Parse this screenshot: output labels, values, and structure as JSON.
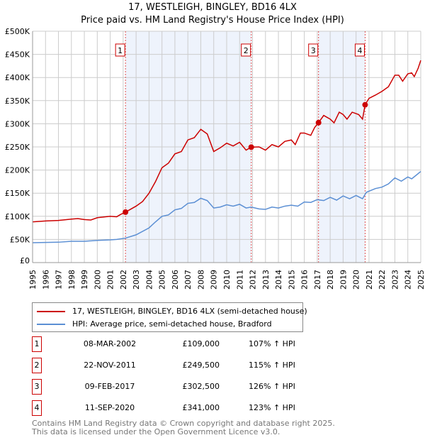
{
  "title": "17, WESTLEIGH, BINGLEY, BD16 4LX",
  "subtitle": "Price paid vs. HM Land Registry's House Price Index (HPI)",
  "colors": {
    "property": "#cc0000",
    "hpi": "#5b8fd4",
    "shade": "#eef3fc",
    "grid": "#cccccc"
  },
  "chart_data": {
    "type": "line",
    "title": "Price paid vs. HM Land Registry's House Price Index (HPI)",
    "xlim": [
      1995,
      2025
    ],
    "ylim": [
      0,
      500000
    ],
    "yticks": [
      {
        "v": 0,
        "label": "£0"
      },
      {
        "v": 50000,
        "label": "£50K"
      },
      {
        "v": 100000,
        "label": "£100K"
      },
      {
        "v": 150000,
        "label": "£150K"
      },
      {
        "v": 200000,
        "label": "£200K"
      },
      {
        "v": 250000,
        "label": "£250K"
      },
      {
        "v": 300000,
        "label": "£300K"
      },
      {
        "v": 350000,
        "label": "£350K"
      },
      {
        "v": 400000,
        "label": "£400K"
      },
      {
        "v": 450000,
        "label": "£450K"
      },
      {
        "v": 500000,
        "label": "£500K"
      }
    ],
    "xticks": [
      "1995",
      "1996",
      "1997",
      "1998",
      "1999",
      "2000",
      "2001",
      "2002",
      "2003",
      "2004",
      "2005",
      "2006",
      "2007",
      "2008",
      "2009",
      "2010",
      "2011",
      "2012",
      "2013",
      "2014",
      "2015",
      "2016",
      "2017",
      "2018",
      "2019",
      "2020",
      "2021",
      "2022",
      "2023",
      "2024",
      "2025"
    ],
    "shaded": [
      [
        2002.18,
        2011.9
      ],
      [
        2017.1,
        2020.7
      ]
    ],
    "series": [
      {
        "name": "17, WESTLEIGH, BINGLEY, BD16 4LX (semi-detached house)",
        "color": "#cc0000",
        "points": [
          [
            1995,
            88
          ],
          [
            1996,
            90
          ],
          [
            1997,
            91
          ],
          [
            1998,
            94
          ],
          [
            1998.5,
            95
          ],
          [
            1999,
            93
          ],
          [
            1999.5,
            92
          ],
          [
            2000,
            97
          ],
          [
            2001,
            100
          ],
          [
            2001.5,
            99
          ],
          [
            2001.8,
            104
          ],
          [
            2002.18,
            109
          ],
          [
            2003,
            122
          ],
          [
            2003.5,
            132
          ],
          [
            2004,
            150
          ],
          [
            2004.5,
            175
          ],
          [
            2005,
            205
          ],
          [
            2005.5,
            215
          ],
          [
            2006,
            235
          ],
          [
            2006.5,
            240
          ],
          [
            2007,
            265
          ],
          [
            2007.5,
            270
          ],
          [
            2008,
            288
          ],
          [
            2008.5,
            278
          ],
          [
            2009,
            240
          ],
          [
            2009.5,
            248
          ],
          [
            2010,
            258
          ],
          [
            2010.5,
            252
          ],
          [
            2011,
            260
          ],
          [
            2011.5,
            243
          ],
          [
            2011.9,
            249.5
          ],
          [
            2012.5,
            250
          ],
          [
            2013,
            243
          ],
          [
            2013.5,
            255
          ],
          [
            2014,
            250
          ],
          [
            2014.5,
            262
          ],
          [
            2015,
            265
          ],
          [
            2015.3,
            255
          ],
          [
            2015.7,
            280
          ],
          [
            2016,
            280
          ],
          [
            2016.5,
            275
          ],
          [
            2016.8,
            292
          ],
          [
            2017.1,
            302.5
          ],
          [
            2017.5,
            318
          ],
          [
            2018,
            310
          ],
          [
            2018.3,
            302
          ],
          [
            2018.7,
            325
          ],
          [
            2019,
            320
          ],
          [
            2019.3,
            310
          ],
          [
            2019.7,
            325
          ],
          [
            2020.2,
            320
          ],
          [
            2020.5,
            310
          ],
          [
            2020.7,
            341
          ],
          [
            2021,
            355
          ],
          [
            2021.5,
            362
          ],
          [
            2022,
            370
          ],
          [
            2022.5,
            380
          ],
          [
            2023,
            405
          ],
          [
            2023.3,
            405
          ],
          [
            2023.6,
            392
          ],
          [
            2024,
            408
          ],
          [
            2024.3,
            410
          ],
          [
            2024.5,
            402
          ],
          [
            2024.8,
            420
          ],
          [
            2025,
            437
          ]
        ]
      },
      {
        "name": "HPI: Average price, semi-detached house, Bradford",
        "color": "#5b8fd4",
        "points": [
          [
            1995,
            43
          ],
          [
            1997,
            44
          ],
          [
            1998,
            46
          ],
          [
            1999,
            46
          ],
          [
            2000,
            48
          ],
          [
            2001,
            49
          ],
          [
            2001.5,
            50
          ],
          [
            2002.2,
            53
          ],
          [
            2003,
            60
          ],
          [
            2004,
            75
          ],
          [
            2004.5,
            88
          ],
          [
            2005,
            100
          ],
          [
            2005.5,
            103
          ],
          [
            2006,
            114
          ],
          [
            2006.5,
            117
          ],
          [
            2007,
            128
          ],
          [
            2007.5,
            130
          ],
          [
            2008,
            139
          ],
          [
            2008.5,
            134
          ],
          [
            2009,
            118
          ],
          [
            2009.5,
            120
          ],
          [
            2010,
            125
          ],
          [
            2010.5,
            122
          ],
          [
            2011,
            126
          ],
          [
            2011.5,
            118
          ],
          [
            2011.9,
            120
          ],
          [
            2012.5,
            116
          ],
          [
            2013,
            115
          ],
          [
            2013.5,
            120
          ],
          [
            2014,
            118
          ],
          [
            2014.5,
            122
          ],
          [
            2015,
            124
          ],
          [
            2015.5,
            122
          ],
          [
            2016,
            131
          ],
          [
            2016.5,
            130
          ],
          [
            2017,
            136
          ],
          [
            2017.5,
            134
          ],
          [
            2018,
            141
          ],
          [
            2018.5,
            135
          ],
          [
            2019,
            144
          ],
          [
            2019.5,
            138
          ],
          [
            2020,
            145
          ],
          [
            2020.5,
            138
          ],
          [
            2020.8,
            152
          ],
          [
            2021.5,
            160
          ],
          [
            2022,
            163
          ],
          [
            2022.5,
            170
          ],
          [
            2023,
            183
          ],
          [
            2023.5,
            176
          ],
          [
            2024,
            185
          ],
          [
            2024.3,
            181
          ],
          [
            2024.7,
            190
          ],
          [
            2025,
            197
          ]
        ]
      }
    ],
    "sales": [
      {
        "n": "1",
        "x": 2002.18,
        "y": 109
      },
      {
        "n": "2",
        "x": 2011.9,
        "y": 249.5
      },
      {
        "n": "3",
        "x": 2017.1,
        "y": 302.5
      },
      {
        "n": "4",
        "x": 2020.7,
        "y": 341
      }
    ]
  },
  "legend": [
    "17, WESTLEIGH, BINGLEY, BD16 4LX (semi-detached house)",
    "HPI: Average price, semi-detached house, Bradford"
  ],
  "table": [
    {
      "n": "1",
      "date": "08-MAR-2002",
      "price": "£109,000",
      "hpi": "107% ↑ HPI"
    },
    {
      "n": "2",
      "date": "22-NOV-2011",
      "price": "£249,500",
      "hpi": "115% ↑ HPI"
    },
    {
      "n": "3",
      "date": "09-FEB-2017",
      "price": "£302,500",
      "hpi": "126% ↑ HPI"
    },
    {
      "n": "4",
      "date": "11-SEP-2020",
      "price": "£341,000",
      "hpi": "123% ↑ HPI"
    }
  ],
  "footer": [
    "Contains HM Land Registry data © Crown copyright and database right 2025.",
    "This data is licensed under the Open Government Licence v3.0."
  ]
}
